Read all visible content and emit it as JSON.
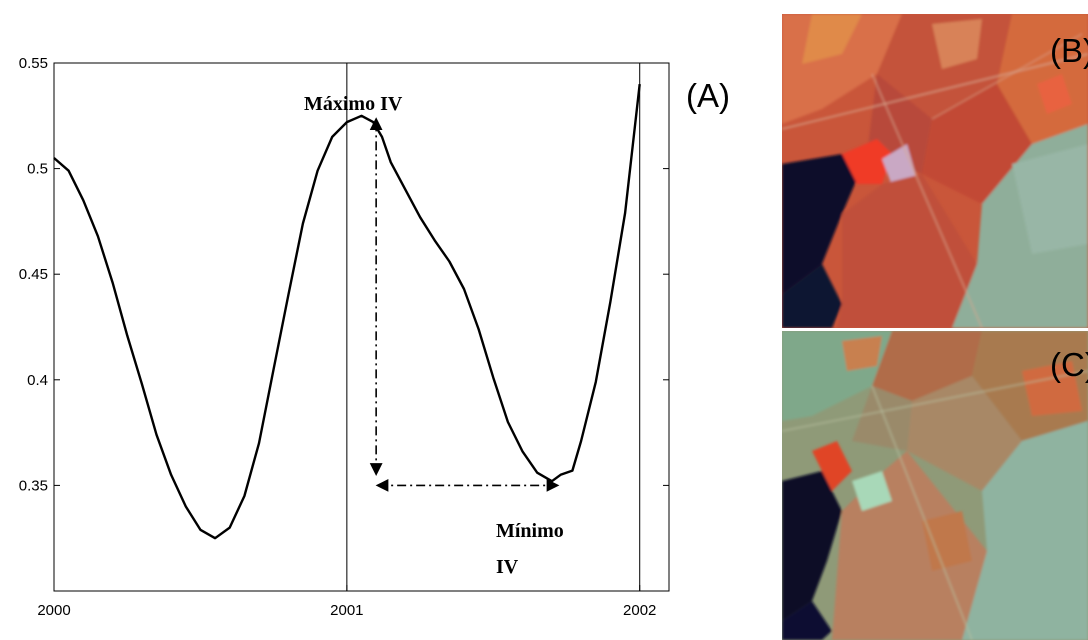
{
  "figure": {
    "panel_a_label": "(A)",
    "panel_b_label": "(B)",
    "panel_c_label": "(C)"
  },
  "annotations": {
    "max_label": "Máximo IV",
    "min_label_line1": "Mínimo",
    "min_label_line2": "IV"
  },
  "chart_data": {
    "type": "line",
    "title": "",
    "xlabel": "",
    "ylabel": "",
    "xlim": [
      2000,
      2002.1
    ],
    "ylim": [
      0.3,
      0.55
    ],
    "xticks": [
      "2000",
      "2001",
      "2002"
    ],
    "yticks": [
      "0.35",
      "0.4",
      "0.45",
      "0.5",
      "0.55"
    ],
    "vertical_lines_at": [
      2001,
      2002
    ],
    "grid": false,
    "x": [
      2000.0,
      2000.05,
      2000.1,
      2000.15,
      2000.2,
      2000.25,
      2000.3,
      2000.35,
      2000.4,
      2000.45,
      2000.5,
      2000.55,
      2000.6,
      2000.65,
      2000.7,
      2000.75,
      2000.8,
      2000.85,
      2000.9,
      2000.95,
      2001.0,
      2001.05,
      2001.09,
      2001.12,
      2001.15,
      2001.2,
      2001.25,
      2001.3,
      2001.35,
      2001.4,
      2001.45,
      2001.5,
      2001.55,
      2001.6,
      2001.65,
      2001.7,
      2001.73,
      2001.77,
      2001.8,
      2001.85,
      2001.9,
      2001.95,
      2002.0
    ],
    "y": [
      0.505,
      0.499,
      0.485,
      0.468,
      0.446,
      0.421,
      0.398,
      0.374,
      0.355,
      0.34,
      0.329,
      0.325,
      0.33,
      0.345,
      0.37,
      0.405,
      0.44,
      0.474,
      0.499,
      0.515,
      0.522,
      0.525,
      0.522,
      0.515,
      0.503,
      0.49,
      0.477,
      0.466,
      0.456,
      0.443,
      0.424,
      0.401,
      0.38,
      0.366,
      0.356,
      0.352,
      0.355,
      0.357,
      0.371,
      0.399,
      0.437,
      0.479,
      0.54
    ],
    "annotations": [
      {
        "text": "Máximo IV",
        "x": 2001.1,
        "y": 0.525
      },
      {
        "text": "Mínimo IV",
        "x": 2001.7,
        "y": 0.352
      }
    ]
  },
  "images": {
    "panel_b": "false-color satellite image of agricultural fields (red/orange fields, dark water body, green-gray area)",
    "panel_c": "false-color satellite image of same area at a different date (more green-gray fields, dark water body)"
  }
}
